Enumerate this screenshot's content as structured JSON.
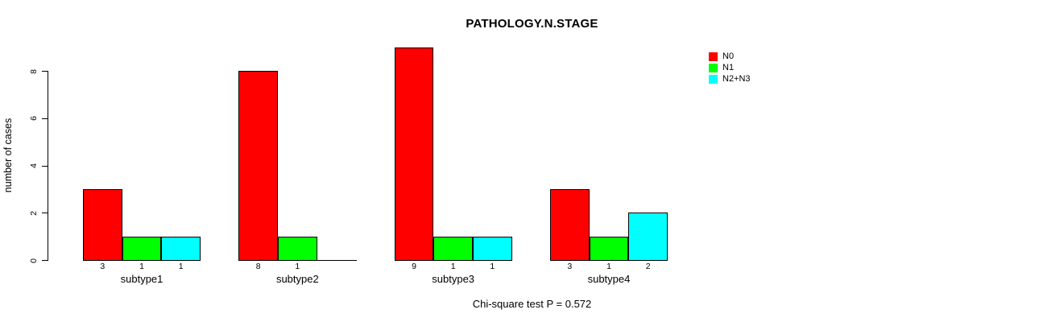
{
  "chart_data": {
    "type": "bar",
    "title": "PATHOLOGY.N.STAGE",
    "ylabel": "number of cases",
    "xlabel": "",
    "caption": "Chi-square test P = 0.572",
    "categories": [
      "subtype1",
      "subtype2",
      "subtype3",
      "subtype4"
    ],
    "series": [
      {
        "name": "N0",
        "color": "#ff0000",
        "values": [
          3,
          8,
          9,
          3
        ]
      },
      {
        "name": "N1",
        "color": "#00ff00",
        "values": [
          1,
          1,
          1,
          1
        ]
      },
      {
        "name": "N2+N3",
        "color": "#00ffff",
        "values": [
          1,
          0,
          1,
          2
        ]
      }
    ],
    "bar_value_labels": [
      [
        "3",
        "1",
        "1"
      ],
      [
        "8",
        "1",
        ""
      ],
      [
        "9",
        "1",
        "1"
      ],
      [
        "3",
        "1",
        "2"
      ]
    ],
    "yticks": [
      "0",
      "2",
      "4",
      "6",
      "8"
    ],
    "ylim": [
      0,
      9
    ],
    "grid": false,
    "legend_position": "right",
    "background": "#ffffff",
    "bar_border_color": "#000000"
  }
}
